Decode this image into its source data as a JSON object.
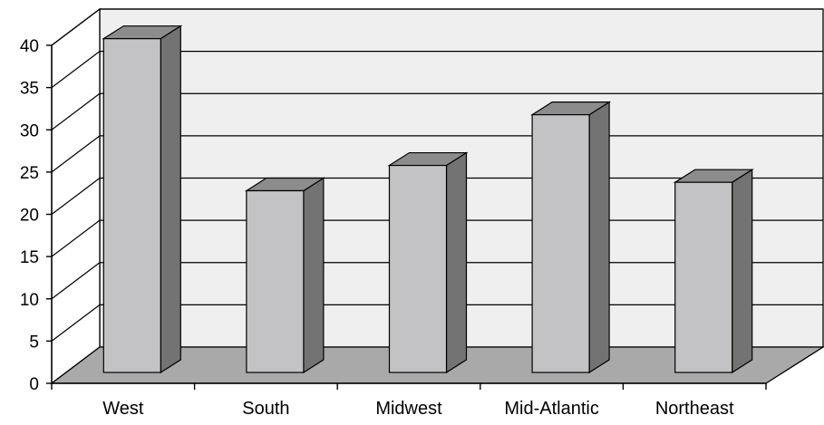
{
  "chart_data": {
    "type": "bar",
    "title": "",
    "xlabel": "",
    "ylabel": "",
    "categories": [
      "West",
      "South",
      "Midwest",
      "Mid-Atlantic",
      "Northeast"
    ],
    "values": [
      39.5,
      21.5,
      24.5,
      30.5,
      22.5
    ],
    "ylim": [
      0,
      40
    ],
    "yticks": [
      "0",
      "5",
      "10",
      "15",
      "20",
      "25",
      "30",
      "35",
      "40"
    ],
    "grid": true,
    "legend": "none",
    "style": "3d",
    "colors": {
      "bar_front": "#c3c3c5",
      "bar_side": "#737373",
      "bar_top": "#8c8c8c",
      "floor": "#a9a9a9",
      "back_wall": "#efefef",
      "side_wall": "#ffffff",
      "outline": "#000000"
    }
  }
}
